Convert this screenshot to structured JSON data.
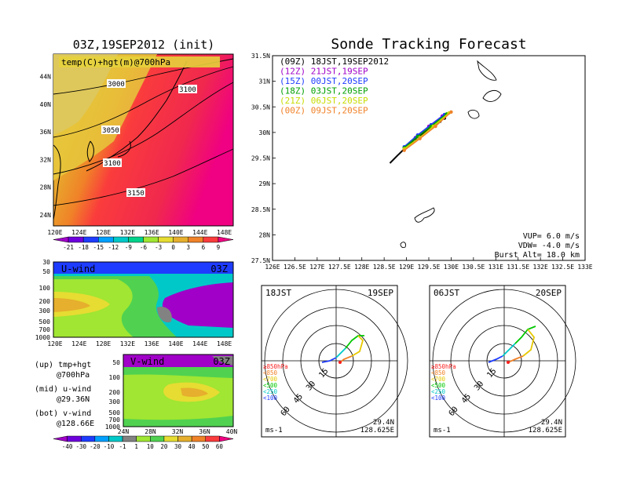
{
  "top_left": {
    "title": "03Z,19SEP2012 (init)",
    "panel_label": "temp(C)+hgt(m)@700hPa",
    "lat_ticks": [
      "24N",
      "28N",
      "32N",
      "36N",
      "40N",
      "44N"
    ],
    "lon_ticks": [
      "120E",
      "124E",
      "128E",
      "132E",
      "136E",
      "140E",
      "144E",
      "148E"
    ],
    "contour_labels": [
      "3000",
      "3100",
      "3050",
      "3100",
      "3150"
    ],
    "colorbar": {
      "labels": [
        "-21",
        "-18",
        "-15",
        "-12",
        "-9",
        "-6",
        "-3",
        "0",
        "3",
        "6",
        "9"
      ],
      "colors": [
        "#a000c8",
        "#6e00dc",
        "#1e3cff",
        "#00a0ff",
        "#00c8c8",
        "#00d28c",
        "#a0e632",
        "#e6dc32",
        "#e6af2d",
        "#f08228",
        "#fa3c3c",
        "#f00082"
      ]
    }
  },
  "uwind": {
    "label": "U-wind",
    "time": "03Z",
    "p_ticks": [
      "30",
      "50",
      "100",
      "200",
      "300",
      "500",
      "700",
      "1000"
    ],
    "lon_ticks": [
      "120E",
      "124E",
      "128E",
      "132E",
      "136E",
      "140E",
      "144E",
      "148E"
    ]
  },
  "vwind": {
    "label": "V-wind",
    "time": "03Z",
    "p_ticks": [
      "50",
      "100",
      "200",
      "300",
      "500",
      "700",
      "1000"
    ],
    "lat_ticks": [
      "24N",
      "28N",
      "32N",
      "36N",
      "40N"
    ]
  },
  "legend_notes": [
    {
      "a": "(up) tmp+hgt",
      "b": "@700hPa"
    },
    {
      "a": "(mid) u-wind",
      "b": "@29.36N"
    },
    {
      "a": "(bot) v-wind",
      "b": "@128.66E"
    }
  ],
  "wind_colorbar": {
    "labels": [
      "-40",
      "-30",
      "-20",
      "-10",
      "-1",
      "1",
      "10",
      "20",
      "30",
      "40",
      "50",
      "60"
    ],
    "colors": [
      "#a000c8",
      "#6e00dc",
      "#1e3cff",
      "#00a0ff",
      "#00c8c8",
      "#828282",
      "#a0e632",
      "#50d250",
      "#e6dc32",
      "#e6af2d",
      "#f08228",
      "#fa3c3c",
      "#f00082"
    ]
  },
  "main": {
    "title": "Sonde Tracking Forecast",
    "lat_ticks": [
      "27.5N",
      "28N",
      "28.5N",
      "29N",
      "29.5N",
      "30N",
      "30.5N",
      "31N",
      "31.5N"
    ],
    "lon_ticks": [
      "126E",
      "126.5E",
      "127E",
      "127.5E",
      "128E",
      "128.5E",
      "129E",
      "129.5E",
      "130E",
      "130.5E",
      "131E",
      "131.5E",
      "132E",
      "132.5E",
      "133E"
    ],
    "legend": [
      {
        "text": "(09Z)  18JST,19SEP2012",
        "color": "#000000"
      },
      {
        "text": "(12Z)  21JST,19SEP",
        "color": "#a000c8"
      },
      {
        "text": "(15Z)  00JST,20SEP",
        "color": "#1e3cff"
      },
      {
        "text": "(18Z)  03JST,20SEP",
        "color": "#00a000"
      },
      {
        "text": "(21Z)  06JST,20SEP",
        "color": "#c8dc00"
      },
      {
        "text": "(00Z)  09JST,20SEP",
        "color": "#f08228"
      }
    ],
    "params": [
      "VUP=  6.0  m/s",
      "VDW= -4.0  m/s",
      "Burst Alt=  18.0  km"
    ]
  },
  "chart_data": [
    {
      "type": "line",
      "title": "Sonde Tracking Forecast",
      "xlim": [
        126,
        133
      ],
      "ylim": [
        27.5,
        31.5
      ],
      "series": [
        {
          "name": "(09Z)  18JST,19SEP2012",
          "x": [
            128.63,
            128.8,
            129.0,
            129.2,
            129.4,
            129.6,
            129.75,
            129.85
          ],
          "y": [
            29.4,
            29.55,
            29.72,
            29.88,
            30.0,
            30.12,
            30.22,
            30.28
          ]
        },
        {
          "name": "(12Z)  21JST,19SEP",
          "x": [
            128.95,
            129.2,
            129.5,
            129.8
          ],
          "y": [
            29.7,
            29.9,
            30.12,
            30.32
          ]
        },
        {
          "name": "(15Z)  00JST,20SEP",
          "x": [
            128.95,
            129.25,
            129.55,
            129.85
          ],
          "y": [
            29.72,
            29.95,
            30.15,
            30.35
          ]
        },
        {
          "name": "(18Z)  03JST,20SEP",
          "x": [
            128.95,
            129.25,
            129.55,
            129.9
          ],
          "y": [
            29.7,
            29.92,
            30.12,
            30.36
          ]
        },
        {
          "name": "(21Z)  06JST,20SEP",
          "x": [
            128.95,
            129.3,
            129.6,
            129.95
          ],
          "y": [
            29.68,
            29.9,
            30.12,
            30.38
          ]
        },
        {
          "name": "(00Z)  09JST,20SEP",
          "x": [
            128.95,
            129.3,
            129.65,
            130.0
          ],
          "y": [
            29.65,
            29.88,
            30.12,
            30.4
          ]
        }
      ]
    }
  ],
  "hodo1": {
    "left": "18JST",
    "right": "19SEP",
    "rings": [
      "15",
      "30",
      "45",
      "60"
    ],
    "unit": "ms-1",
    "lat": "29.4N",
    "lon": "128.625E"
  },
  "hodo2": {
    "left": "06JST",
    "right": "20SEP",
    "rings": [
      "15",
      "30",
      "45",
      "60"
    ],
    "unit": "ms-1",
    "lat": "29.4N",
    "lon": "128.625E"
  },
  "hodo_legend": [
    {
      "text": "≥850hPa",
      "color": "#fa1e1e"
    },
    {
      "text": "<850",
      "color": "#f08228"
    },
    {
      "text": "<700",
      "color": "#e6c800"
    },
    {
      "text": "<500",
      "color": "#00c800"
    },
    {
      "text": "<250",
      "color": "#00c8c8"
    },
    {
      "text": "<100",
      "color": "#1e3cff"
    }
  ]
}
